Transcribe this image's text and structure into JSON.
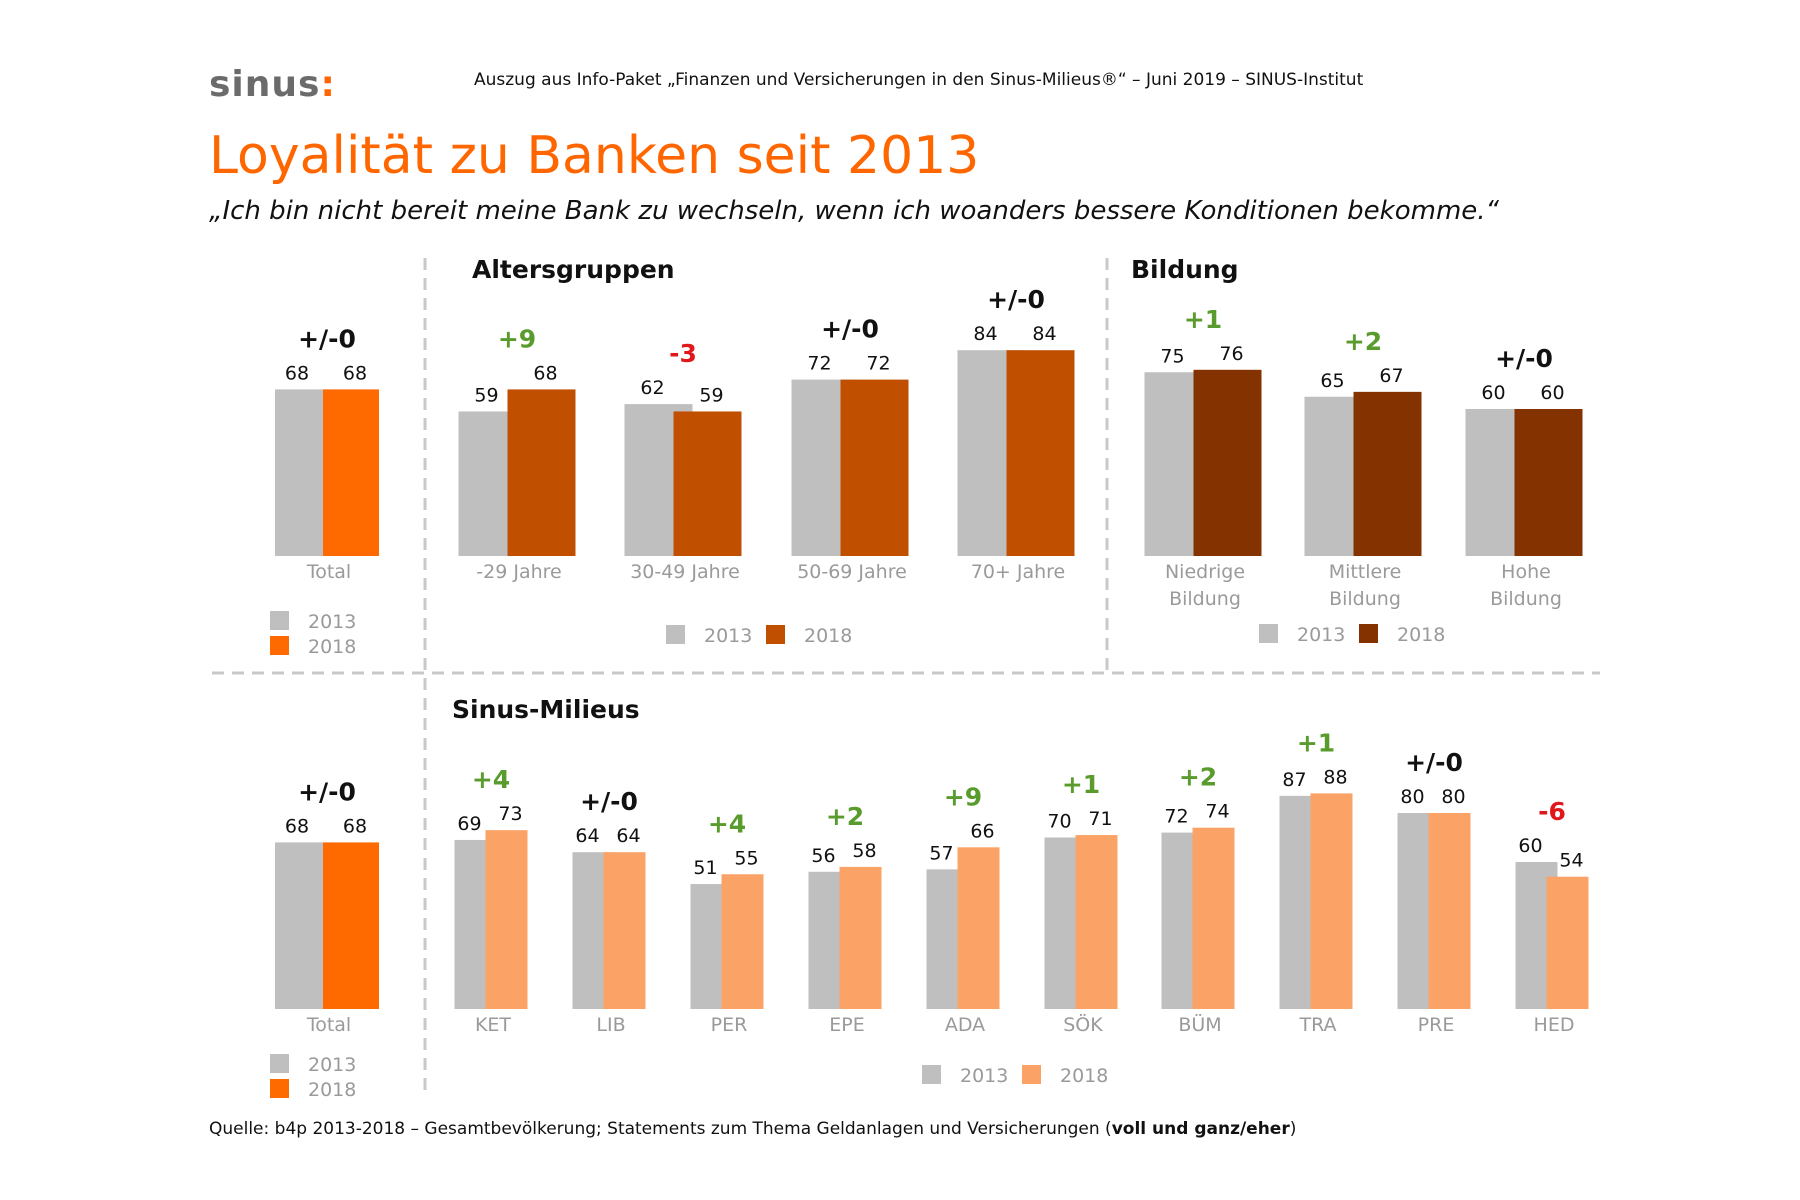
{
  "header": {
    "logo_text": "sinus",
    "logo_dots": ":",
    "note": "Auszug aus Info-Paket „Finanzen und Versicherungen in den Sinus-Milieus®“ – Juni 2019 – SINUS-Institut",
    "title": "Loyalität zu Banken seit 2013",
    "subtitle": "„Ich bin nicht bereit meine Bank zu wechseln, wenn ich woanders bessere Konditionen bekomme.“"
  },
  "footer": {
    "source_prefix": "Quelle: b4p 2013-2018 – Gesamtbevölkerung; Statements zum Thema Geldanlagen und Versicherungen (",
    "source_bold": "voll und ganz/eher",
    "source_suffix": ")"
  },
  "colors": {
    "y2013": "#bfbfbf",
    "total_2018": "#ff6a00",
    "age_2018": "#c04f00",
    "education_2018": "#843300",
    "milieu_2018": "#fba366",
    "positive": "#5a9b2e",
    "negative": "#e0181c",
    "neutral": "#111111",
    "axis_label": "#9a9a9a",
    "divider": "#c8c8c8"
  },
  "chart_data": [
    {
      "id": "total_top",
      "type": "bar",
      "categories": [
        "Total"
      ],
      "series": [
        {
          "name": "2013",
          "values": [
            68
          ]
        },
        {
          "name": "2018",
          "values": [
            68
          ]
        }
      ],
      "changes": [
        "+/-0"
      ],
      "legend": [
        "2013",
        "2018"
      ],
      "ylim": [
        0,
        100
      ]
    },
    {
      "id": "age_groups",
      "type": "bar",
      "title": "Altersgruppen",
      "categories": [
        "-29 Jahre",
        "30-49 Jahre",
        "50-69 Jahre",
        "70+ Jahre"
      ],
      "series": [
        {
          "name": "2013",
          "values": [
            59,
            62,
            72,
            84
          ]
        },
        {
          "name": "2018",
          "values": [
            68,
            59,
            72,
            84
          ]
        }
      ],
      "changes": [
        "+9",
        "-3",
        "+/-0",
        "+/-0"
      ],
      "legend": [
        "2013",
        "2018"
      ],
      "ylim": [
        0,
        100
      ]
    },
    {
      "id": "education",
      "type": "bar",
      "title": "Bildung",
      "categories": [
        [
          "Niedrige",
          "Bildung"
        ],
        [
          "Mittlere",
          "Bildung"
        ],
        [
          "Hohe",
          "Bildung"
        ]
      ],
      "series": [
        {
          "name": "2013",
          "values": [
            75,
            65,
            60
          ]
        },
        {
          "name": "2018",
          "values": [
            76,
            67,
            60
          ]
        }
      ],
      "changes": [
        "+1",
        "+2",
        "+/-0"
      ],
      "legend": [
        "2013",
        "2018"
      ],
      "ylim": [
        0,
        100
      ]
    },
    {
      "id": "total_bottom",
      "type": "bar",
      "categories": [
        "Total"
      ],
      "series": [
        {
          "name": "2013",
          "values": [
            68
          ]
        },
        {
          "name": "2018",
          "values": [
            68
          ]
        }
      ],
      "changes": [
        "+/-0"
      ],
      "legend": [
        "2013",
        "2018"
      ],
      "ylim": [
        0,
        100
      ]
    },
    {
      "id": "milieus",
      "type": "bar",
      "title": "Sinus-Milieus",
      "categories": [
        "KET",
        "LIB",
        "PER",
        "EPE",
        "ADA",
        "SÖK",
        "BÜM",
        "TRA",
        "PRE",
        "HED"
      ],
      "series": [
        {
          "name": "2013",
          "values": [
            69,
            64,
            51,
            56,
            57,
            70,
            72,
            87,
            80,
            60
          ]
        },
        {
          "name": "2018",
          "values": [
            73,
            64,
            55,
            58,
            66,
            71,
            74,
            88,
            80,
            54
          ]
        }
      ],
      "changes": [
        "+4",
        "+/-0",
        "+4",
        "+2",
        "+9",
        "+1",
        "+2",
        "+1",
        "+/-0",
        "-6"
      ],
      "legend": [
        "2013",
        "2018"
      ],
      "ylim": [
        0,
        100
      ]
    }
  ]
}
